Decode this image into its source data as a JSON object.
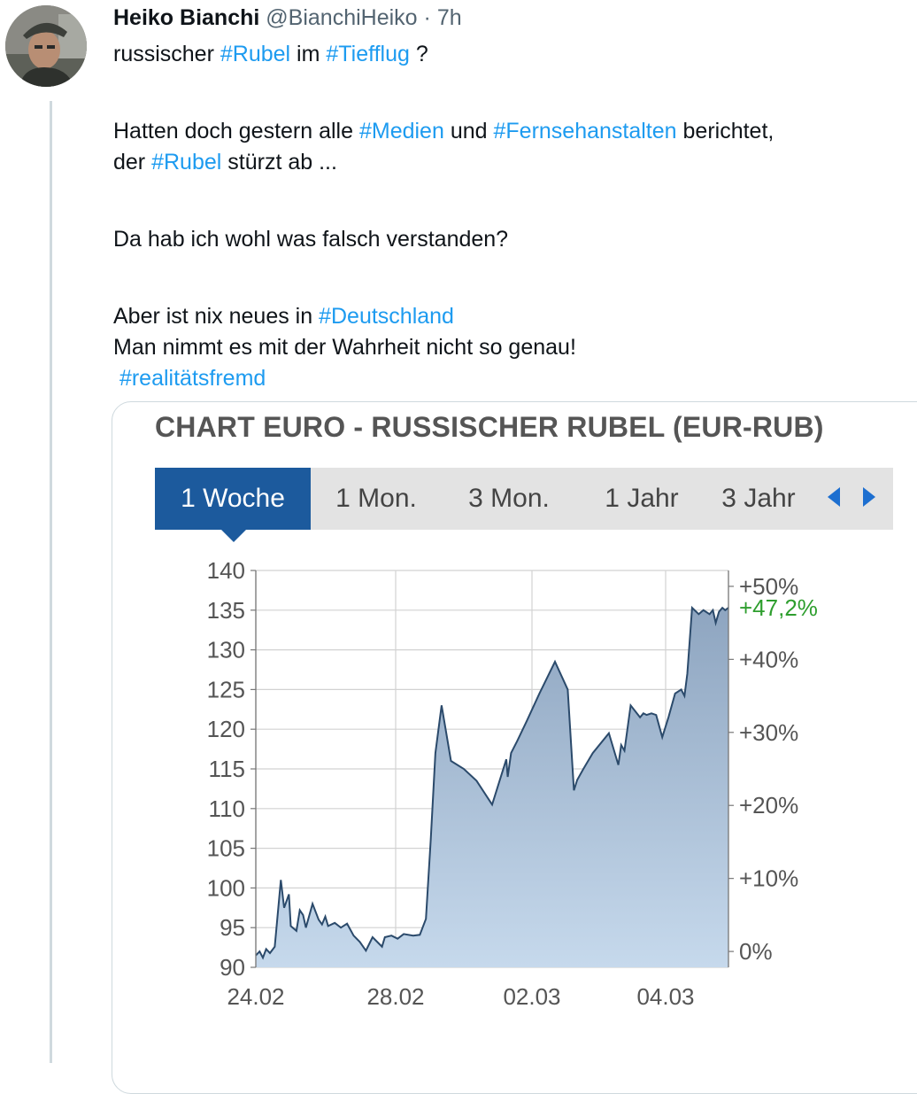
{
  "tweet": {
    "author_name": "Heiko Bianchi",
    "handle": "@BianchiHeiko",
    "separator": "·",
    "time": "7h",
    "line1": {
      "pre": "russischer ",
      "tag1": "#Rubel",
      "mid": " im ",
      "tag2": "#Tiefflug",
      "post": " ?"
    },
    "line2": {
      "pre": "Hatten doch gestern alle ",
      "tag1": "#Medien",
      "mid": " und ",
      "tag2": "#Fernsehanstalten",
      "post": " berichtet,"
    },
    "line3": {
      "pre": "der ",
      "tag1": "#Rubel",
      "post": " stürzt ab ..."
    },
    "line4": "Da hab ich wohl was falsch verstanden?",
    "line5": {
      "pre": "Aber ist nix neues in ",
      "tag1": "#Deutschland"
    },
    "line6": "Man nimmt es mit der Wahrheit nicht so genau!",
    "line7": {
      "tag1": "#realitätsfremd"
    }
  },
  "chart_card": {
    "title": "CHART EURO - RUSSISCHER RUBEL (EUR-RUB)",
    "tabs": [
      "1 Woche",
      "1 Mon.",
      "3 Mon.",
      "1 Jahr",
      "3 Jahr"
    ],
    "active_tab": "1 Woche"
  },
  "colors": {
    "hashtag": "#1d9bf0",
    "active_tab": "#1c5a9d",
    "series_line": "#2b4a6b",
    "series_fill_top": "#8ea5c0",
    "series_fill_bottom": "#c6d9ec",
    "current_percent": "#2e9e2e"
  },
  "chart_data": {
    "type": "area",
    "ylim": [
      90,
      140
    ],
    "y_ticks": [
      "140",
      "135",
      "130",
      "125",
      "120",
      "115",
      "110",
      "105",
      "100",
      "95",
      "90"
    ],
    "x_ticks": [
      "24.02",
      "28.02",
      "02.03",
      "04.03"
    ],
    "pct_ticks": [
      "+50%",
      "+40%",
      "+30%",
      "+20%",
      "+10%",
      "0%"
    ],
    "current_pct_label": "+47,2%",
    "grid": true,
    "series": [
      {
        "x": [
          0,
          0.8,
          1.5,
          2.2,
          3,
          4,
          5.3,
          6,
          7,
          7.4,
          8.6,
          9.3,
          10,
          10.6,
          12,
          13.3,
          14,
          14.7,
          15.3,
          16.7,
          18,
          19.3,
          20.7,
          22,
          23.3,
          24.7,
          26.7,
          27.3,
          28.7,
          30,
          31.3,
          33.3,
          34.7,
          36,
          37,
          38,
          39.3,
          41.3,
          44,
          46.7,
          50,
          53,
          53.3,
          54,
          55.3,
          57.3,
          60,
          63.3,
          66,
          67.3,
          68,
          69.3,
          71.3,
          74.7,
          76.7,
          77.3,
          78,
          79.3,
          81.3,
          82,
          82.7,
          83.7,
          84.7,
          86,
          87.3,
          88.7,
          90,
          90.7,
          91.3,
          92.3,
          93.7,
          94.7,
          96,
          96.7,
          97.3,
          98,
          98.7,
          99.3,
          100
        ],
        "values": [
          91.5,
          92,
          91.2,
          92.3,
          91.8,
          92.6,
          101,
          97.5,
          99.2,
          95.2,
          94.6,
          97.2,
          96.6,
          95,
          98,
          96,
          95.4,
          96.4,
          95.2,
          95.6,
          95,
          95.5,
          94,
          93.2,
          92.1,
          93.8,
          92.6,
          93.8,
          94,
          93.6,
          94.2,
          94,
          94.1,
          96.1,
          106,
          117,
          123,
          116,
          115,
          113.5,
          110.5,
          116.2,
          114,
          117,
          118.5,
          121,
          124.5,
          128.5,
          125,
          112.3,
          113.6,
          115,
          117,
          119.5,
          115.5,
          118,
          117.3,
          123,
          121.5,
          122,
          121.8,
          122,
          121.8,
          119,
          121.5,
          124.5,
          125,
          124.2,
          127,
          135.3,
          134.5,
          135,
          134.5,
          135,
          133.4,
          134.8,
          135.3,
          135,
          135.3
        ]
      }
    ]
  }
}
